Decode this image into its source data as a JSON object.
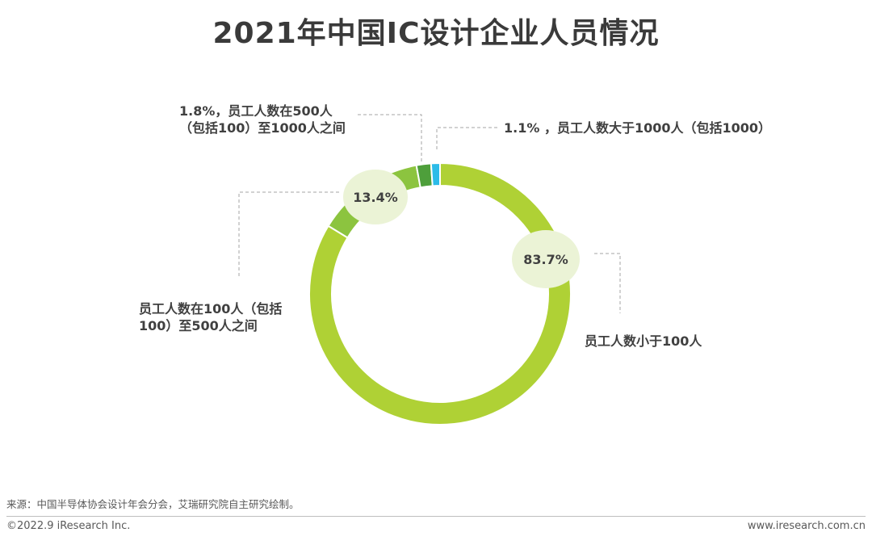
{
  "title": "2021年中国IC设计企业人员情况",
  "chart_data": {
    "type": "pie",
    "variant": "donut",
    "title": "2021年中国IC设计企业人员情况",
    "slices": [
      {
        "label": "员工人数小于100人",
        "value": 83.7,
        "value_label": "83.7%",
        "color": "#afd135"
      },
      {
        "label": "员工人数在100人（包括100）至500人之间",
        "value": 13.4,
        "value_label": "13.4%",
        "color": "#8cc43f"
      },
      {
        "label": "员工人数在500人（包括100）至1000人之间",
        "value": 1.8,
        "value_label": "1.8%",
        "color": "#4e9f3b"
      },
      {
        "label": "员工人数大于1000人（包括1000）",
        "value": 1.1,
        "value_label": "1.1%",
        "color": "#2cbbe8"
      }
    ],
    "label_texts": {
      "under100": "员工人数小于100人",
      "from100_line1": "员工人数在100人（包括",
      "from100_line2": "100）至500人之间",
      "from500_line1": "1.8%，员工人数在500人",
      "from500_line2": "（包括100）至1000人之间",
      "over1000": "1.1% ，员工人数大于1000人（包括1000）"
    },
    "bubble_color": "#ebf3d6"
  },
  "footer": {
    "source": "来源：中国半导体协会设计年会分会，艾瑞研究院自主研究绘制。",
    "copyright": "©2022.9 iResearch Inc.",
    "website": "www.iresearch.com.cn"
  }
}
